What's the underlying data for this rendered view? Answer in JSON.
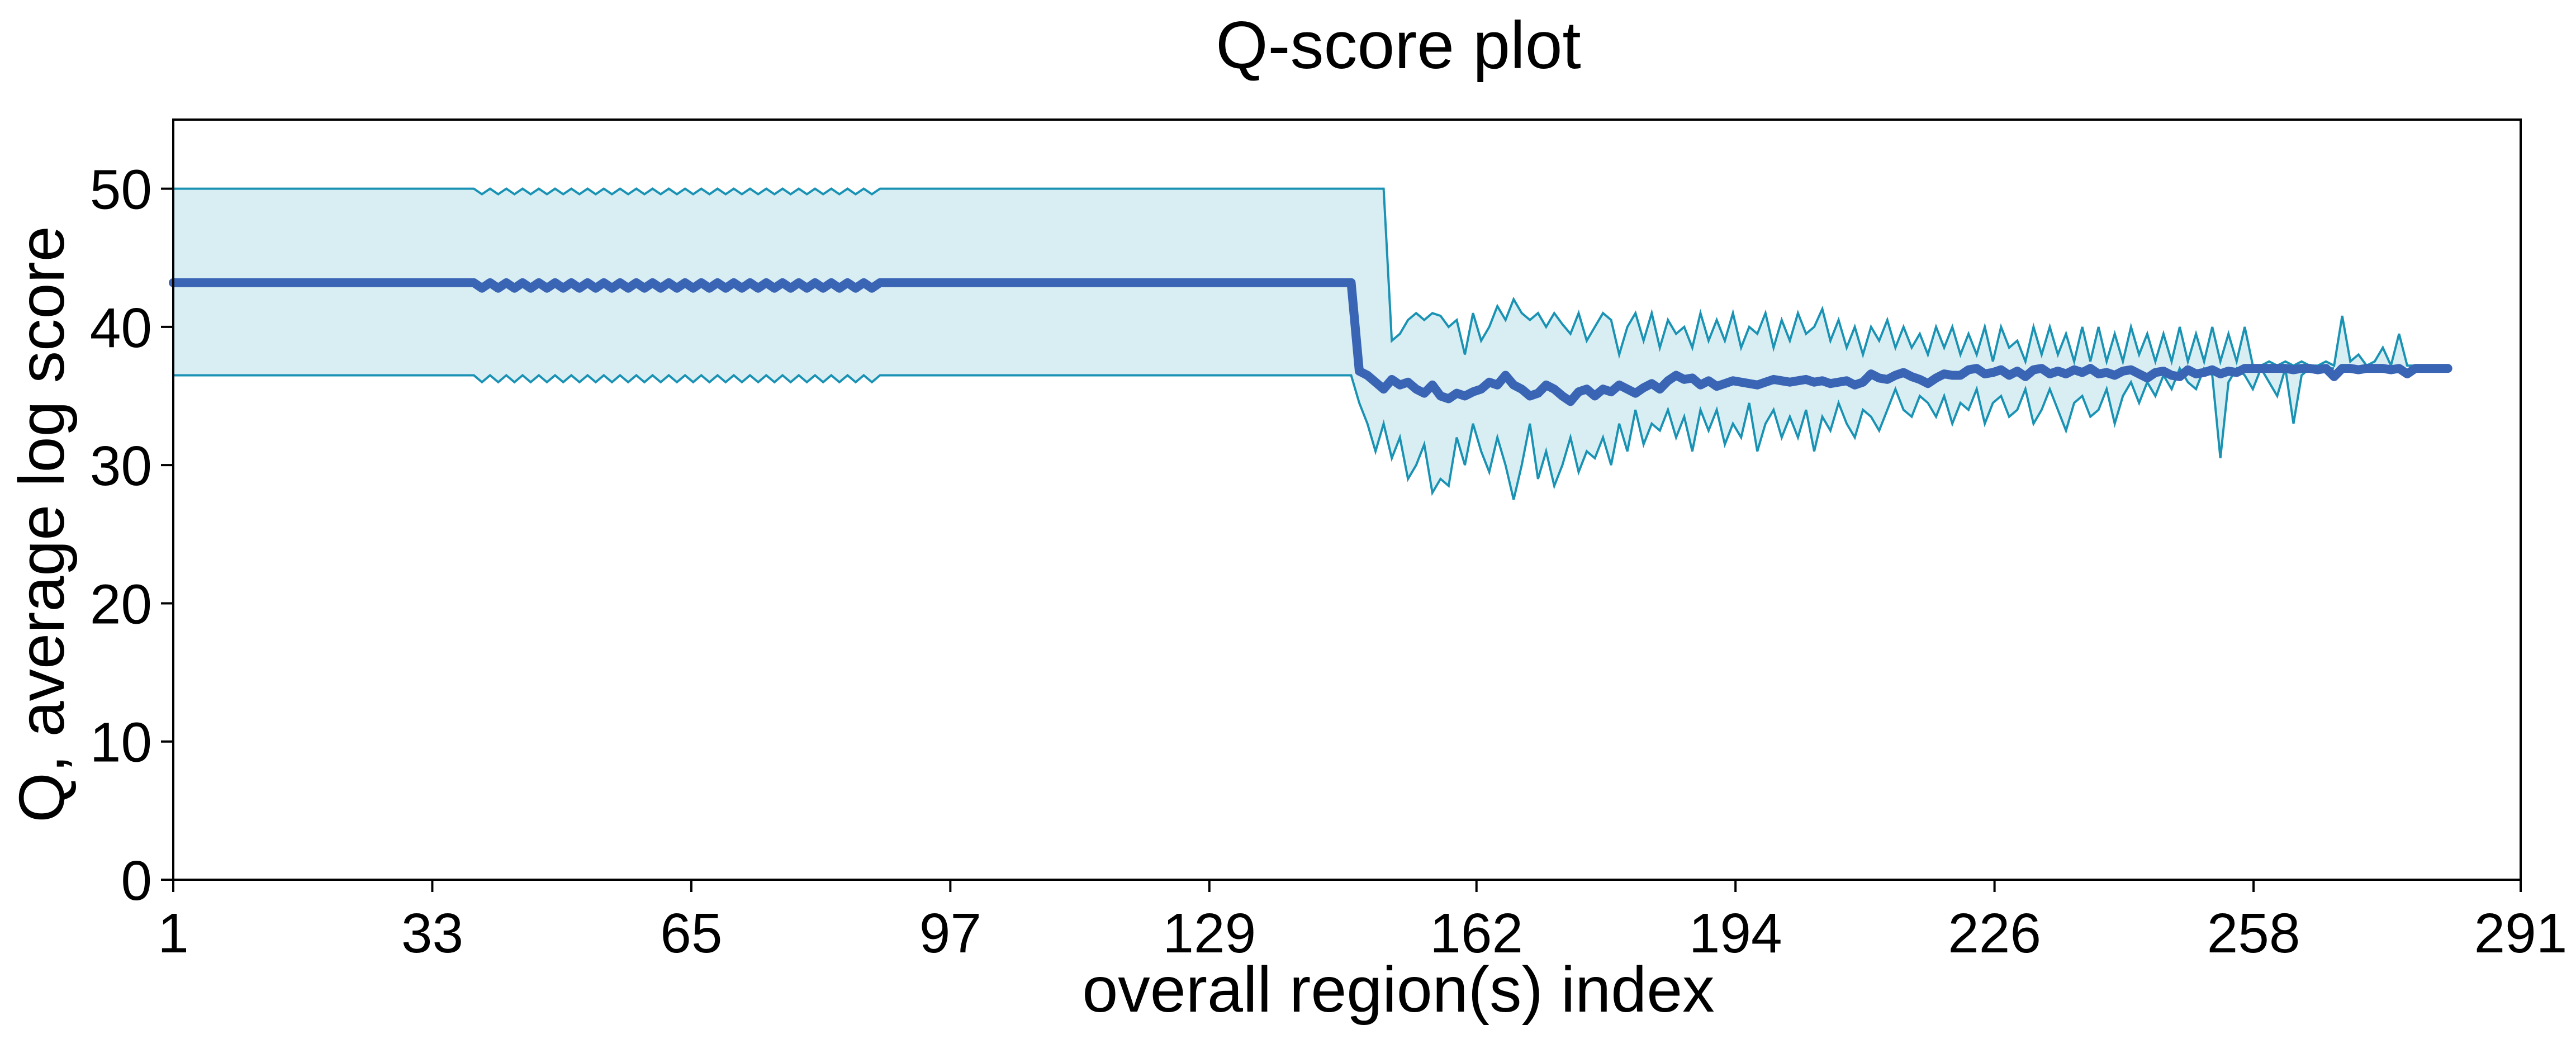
{
  "chart_data": {
    "type": "line",
    "title": "Q-score plot",
    "xlabel": "overall region(s) index",
    "ylabel": "Q, average log score",
    "xlim": [
      1,
      291
    ],
    "ylim": [
      0,
      55
    ],
    "x_ticks": [
      1,
      33,
      65,
      97,
      129,
      162,
      194,
      226,
      258,
      291
    ],
    "y_ticks": [
      0,
      10,
      20,
      30,
      40,
      50
    ],
    "grid": false,
    "legend": "none",
    "x_start": 1,
    "x_end": 282,
    "band_upper": [
      50,
      50,
      50,
      50,
      50,
      50,
      50,
      50,
      50,
      50,
      50,
      50,
      50,
      50,
      50,
      50,
      50,
      50,
      50,
      50,
      50,
      50,
      50,
      50,
      50,
      50,
      50,
      50,
      50,
      50,
      50,
      50,
      50,
      50,
      50,
      50,
      50,
      50,
      49.6,
      50,
      49.6,
      50,
      49.6,
      50,
      49.6,
      50,
      49.6,
      50,
      49.6,
      50,
      49.6,
      50,
      49.6,
      50,
      49.6,
      50,
      49.6,
      50,
      49.6,
      50,
      49.6,
      50,
      49.6,
      50,
      49.6,
      50,
      49.6,
      50,
      49.6,
      50,
      49.6,
      50,
      49.6,
      50,
      49.6,
      50,
      49.6,
      50,
      49.6,
      50,
      49.6,
      50,
      49.6,
      50,
      49.6,
      50,
      49.6,
      50,
      50,
      50,
      50,
      50,
      50,
      50,
      50,
      50,
      50,
      50,
      50,
      50,
      50,
      50,
      50,
      50,
      50,
      50,
      50,
      50,
      50,
      50,
      50,
      50,
      50,
      50,
      50,
      50,
      50,
      50,
      50,
      50,
      50,
      50,
      50,
      50,
      50,
      50,
      50,
      50,
      50,
      50,
      50,
      50,
      50,
      50,
      50,
      50,
      50,
      50,
      50,
      50,
      50,
      50,
      50,
      50,
      50,
      50,
      50,
      50,
      50,
      50,
      39,
      39.5,
      40.5,
      41,
      40.5,
      41,
      40.8,
      40,
      40.5,
      38,
      41,
      39,
      40,
      41.5,
      40.5,
      42,
      41,
      40.5,
      41,
      40,
      41,
      40.2,
      39.5,
      41,
      39,
      40,
      41,
      40.5,
      38,
      40,
      41,
      39,
      41,
      38.5,
      40.5,
      39.5,
      40,
      38.5,
      41,
      39,
      40.5,
      39,
      41,
      38.5,
      40,
      39.5,
      41,
      38.5,
      40.5,
      39,
      41,
      39.5,
      40,
      41.3,
      39,
      40.5,
      38.5,
      40,
      38,
      40,
      39,
      40.5,
      38.5,
      40,
      38.5,
      39.5,
      38,
      40,
      38.5,
      40,
      38,
      39.5,
      38,
      40,
      37.5,
      40,
      38.5,
      39,
      37.5,
      40,
      38,
      40,
      38,
      39.5,
      37.5,
      40,
      37.5,
      40,
      37.5,
      39.5,
      37.5,
      40,
      38,
      39.5,
      37.5,
      39.5,
      37.5,
      40,
      37.5,
      39.5,
      37.5,
      40,
      37.5,
      39.5,
      37.5,
      40,
      37.2,
      37.2,
      37.5,
      37.2,
      37.5,
      37.2,
      37.5,
      37.2,
      37.2,
      37.5,
      37.2,
      40.8,
      37.5,
      38,
      37.2,
      37.5,
      38.5,
      37.2,
      39.5,
      37.2,
      37.2,
      37.2,
      37.2,
      37.2,
      37.2
    ],
    "band_lower": [
      36.5,
      36.5,
      36.5,
      36.5,
      36.5,
      36.5,
      36.5,
      36.5,
      36.5,
      36.5,
      36.5,
      36.5,
      36.5,
      36.5,
      36.5,
      36.5,
      36.5,
      36.5,
      36.5,
      36.5,
      36.5,
      36.5,
      36.5,
      36.5,
      36.5,
      36.5,
      36.5,
      36.5,
      36.5,
      36.5,
      36.5,
      36.5,
      36.5,
      36.5,
      36.5,
      36.5,
      36.5,
      36.5,
      36,
      36.5,
      36,
      36.5,
      36,
      36.5,
      36,
      36.5,
      36,
      36.5,
      36,
      36.5,
      36,
      36.5,
      36,
      36.5,
      36,
      36.5,
      36,
      36.5,
      36,
      36.5,
      36,
      36.5,
      36,
      36.5,
      36,
      36.5,
      36,
      36.5,
      36,
      36.5,
      36,
      36.5,
      36,
      36.5,
      36,
      36.5,
      36,
      36.5,
      36,
      36.5,
      36,
      36.5,
      36,
      36.5,
      36,
      36.5,
      36,
      36.5,
      36.5,
      36.5,
      36.5,
      36.5,
      36.5,
      36.5,
      36.5,
      36.5,
      36.5,
      36.5,
      36.5,
      36.5,
      36.5,
      36.5,
      36.5,
      36.5,
      36.5,
      36.5,
      36.5,
      36.5,
      36.5,
      36.5,
      36.5,
      36.5,
      36.5,
      36.5,
      36.5,
      36.5,
      36.5,
      36.5,
      36.5,
      36.5,
      36.5,
      36.5,
      36.5,
      36.5,
      36.5,
      36.5,
      36.5,
      36.5,
      36.5,
      36.5,
      36.5,
      36.5,
      36.5,
      36.5,
      36.5,
      36.5,
      36.5,
      36.5,
      36.5,
      36.5,
      36.5,
      36.5,
      36.5,
      36.5,
      36.5,
      36.5,
      34.5,
      33,
      31,
      33,
      30.5,
      32,
      29,
      30,
      31.5,
      28,
      29,
      28.5,
      32,
      30,
      33,
      31,
      29.5,
      32,
      30,
      27.5,
      30,
      33,
      29,
      31,
      28.5,
      30,
      32,
      29.5,
      31,
      30.5,
      32,
      30,
      33,
      31,
      34,
      31.5,
      33,
      32.5,
      34,
      32,
      33.5,
      31,
      34,
      32.5,
      34,
      31.5,
      33,
      32,
      34.5,
      31,
      33,
      34,
      32,
      33.5,
      32,
      34,
      31,
      33.5,
      32.5,
      34.5,
      33,
      32,
      34,
      33.5,
      32.5,
      34,
      35.5,
      34,
      33.5,
      35,
      34.5,
      33.5,
      35,
      33,
      34.5,
      34,
      35.5,
      33,
      34.5,
      35,
      33.5,
      34,
      35.5,
      33,
      34,
      35.5,
      34,
      32.5,
      34.5,
      35,
      33.5,
      34,
      35.5,
      33,
      35,
      36,
      34.5,
      36,
      35,
      36.5,
      35.5,
      37,
      36,
      35.5,
      37,
      36.5,
      30.5,
      36,
      37,
      36.5,
      35.5,
      37,
      36,
      35,
      37,
      33,
      36.5,
      37,
      37,
      37,
      37
    ],
    "q_mean": [
      43.2,
      43.2,
      43.2,
      43.2,
      43.2,
      43.2,
      43.2,
      43.2,
      43.2,
      43.2,
      43.2,
      43.2,
      43.2,
      43.2,
      43.2,
      43.2,
      43.2,
      43.2,
      43.2,
      43.2,
      43.2,
      43.2,
      43.2,
      43.2,
      43.2,
      43.2,
      43.2,
      43.2,
      43.2,
      43.2,
      43.2,
      43.2,
      43.2,
      43.2,
      43.2,
      43.2,
      43.2,
      43.2,
      42.8,
      43.2,
      42.8,
      43.2,
      42.8,
      43.2,
      42.8,
      43.2,
      42.8,
      43.2,
      42.8,
      43.2,
      42.8,
      43.2,
      42.8,
      43.2,
      42.8,
      43.2,
      42.8,
      43.2,
      42.8,
      43.2,
      42.8,
      43.2,
      42.8,
      43.2,
      42.8,
      43.2,
      42.8,
      43.2,
      42.8,
      43.2,
      42.8,
      43.2,
      42.8,
      43.2,
      42.8,
      43.2,
      42.8,
      43.2,
      42.8,
      43.2,
      42.8,
      43.2,
      42.8,
      43.2,
      42.8,
      43.2,
      42.8,
      43.2,
      43.2,
      43.2,
      43.2,
      43.2,
      43.2,
      43.2,
      43.2,
      43.2,
      43.2,
      43.2,
      43.2,
      43.2,
      43.2,
      43.2,
      43.2,
      43.2,
      43.2,
      43.2,
      43.2,
      43.2,
      43.2,
      43.2,
      43.2,
      43.2,
      43.2,
      43.2,
      43.2,
      43.2,
      43.2,
      43.2,
      43.2,
      43.2,
      43.2,
      43.2,
      43.2,
      43.2,
      43.2,
      43.2,
      43.2,
      43.2,
      43.2,
      43.2,
      43.2,
      43.2,
      43.2,
      43.2,
      43.2,
      43.2,
      43.2,
      43.2,
      43.2,
      43.2,
      43.2,
      43.2,
      43.2,
      43.2,
      43.2,
      43.2,
      36.8,
      36.5,
      36,
      35.5,
      36.2,
      35.8,
      36,
      35.5,
      35.2,
      35.8,
      35,
      34.8,
      35.2,
      35,
      35.3,
      35.5,
      36,
      35.8,
      36.5,
      35.8,
      35.5,
      35,
      35.2,
      35.8,
      35.5,
      35,
      34.6,
      35.3,
      35.5,
      35,
      35.5,
      35.3,
      35.8,
      35.5,
      35.2,
      35.6,
      35.9,
      35.5,
      36.1,
      36.5,
      36.2,
      36.3,
      35.8,
      36.1,
      35.7,
      35.9,
      36.1,
      36,
      35.9,
      35.8,
      36,
      36.2,
      36.1,
      36,
      36.1,
      36.2,
      36,
      36.1,
      35.9,
      36,
      36.1,
      35.8,
      36,
      36.6,
      36.3,
      36.2,
      36.5,
      36.7,
      36.4,
      36.2,
      35.9,
      36.3,
      36.6,
      36.5,
      36.5,
      36.9,
      37,
      36.6,
      36.7,
      36.9,
      36.5,
      36.8,
      36.4,
      36.9,
      37,
      36.6,
      36.8,
      36.6,
      36.9,
      36.7,
      37,
      36.6,
      36.7,
      36.5,
      36.8,
      36.9,
      36.6,
      36.3,
      36.7,
      36.8,
      36.5,
      36.4,
      36.9,
      36.6,
      36.7,
      36.9,
      36.6,
      36.8,
      36.7,
      37,
      37,
      37,
      37,
      37,
      37,
      36.9,
      37,
      37,
      36.9,
      37,
      36.4,
      37,
      37,
      36.9,
      37,
      37,
      37,
      36.9,
      37,
      36.6,
      37,
      37,
      37,
      37,
      37
    ]
  }
}
